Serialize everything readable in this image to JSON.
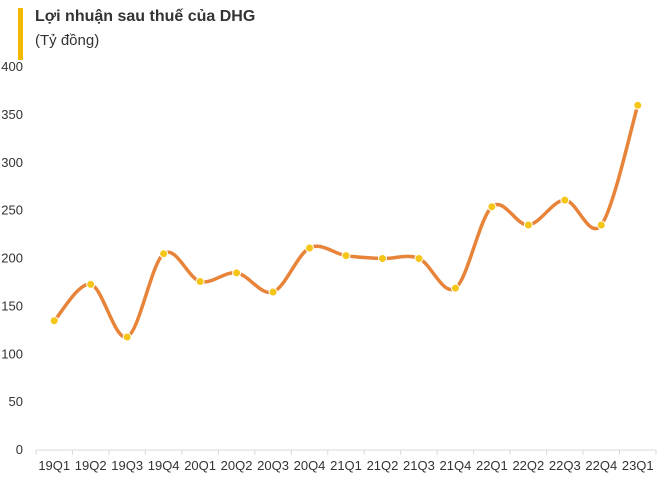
{
  "chart_data": {
    "type": "line",
    "title": "Lợi nhuận sau thuế của DHG",
    "subtitle": "(Tỷ đồng)",
    "categories": [
      "19Q1",
      "19Q2",
      "19Q3",
      "19Q4",
      "20Q1",
      "20Q2",
      "20Q3",
      "20Q4",
      "21Q1",
      "21Q2",
      "21Q3",
      "21Q4",
      "22Q1",
      "22Q2",
      "22Q3",
      "22Q4",
      "23Q1"
    ],
    "series": [
      {
        "values": [
          135,
          173,
          118,
          205,
          176,
          185,
          165,
          211,
          203,
          200,
          200,
          169,
          254,
          235,
          261,
          235,
          360
        ]
      }
    ],
    "ylim": [
      0,
      400
    ],
    "yticks": [
      0,
      50,
      100,
      150,
      200,
      250,
      300,
      350,
      400
    ],
    "xlabel": "",
    "ylabel": "",
    "grid": false,
    "colors": {
      "line": "#e8833a",
      "marker": "#f5c518",
      "accent": "#f5b800",
      "axis": "#d9d9d9"
    }
  }
}
